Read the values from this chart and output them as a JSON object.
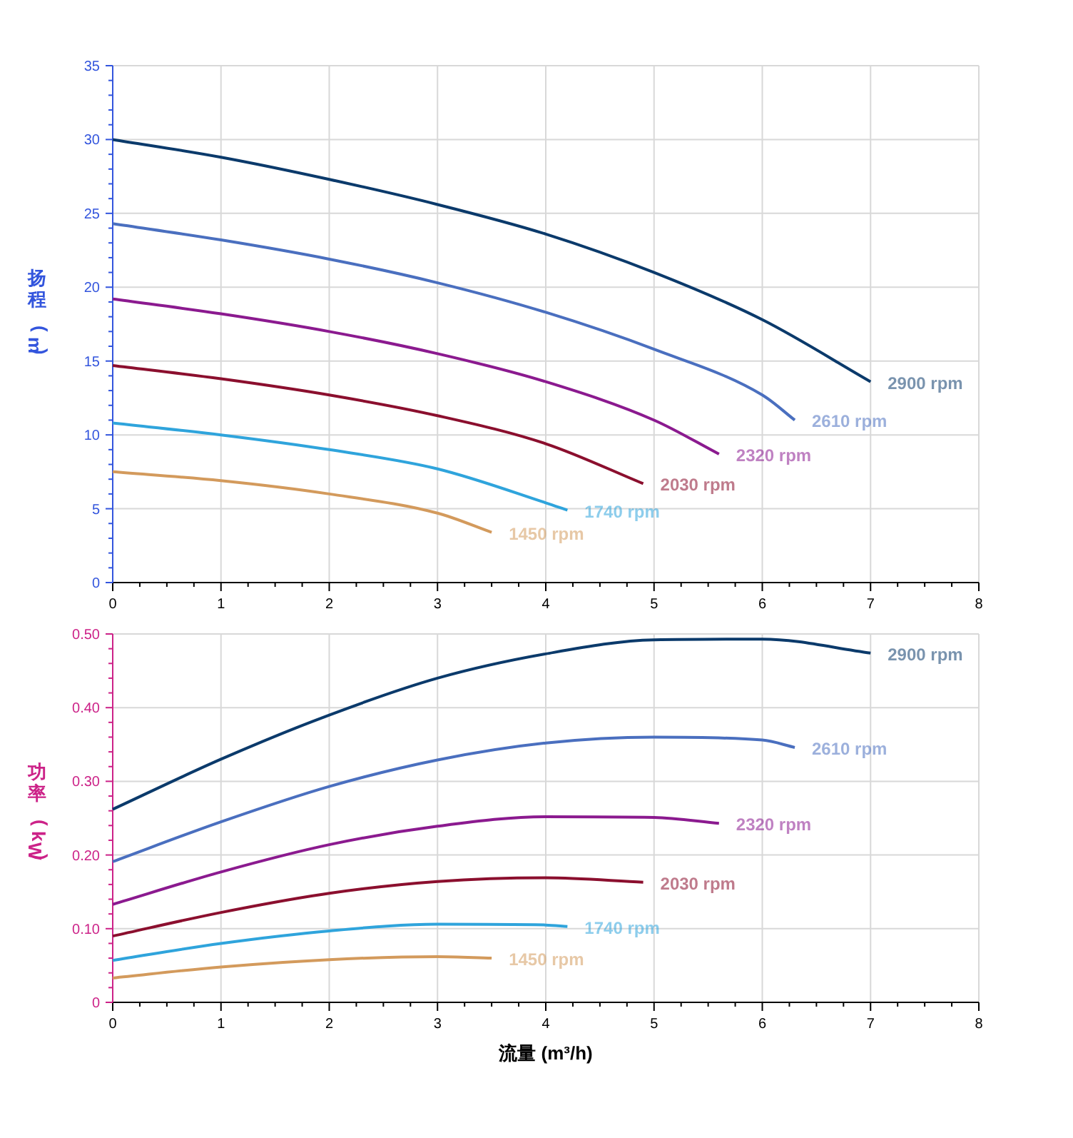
{
  "chart_data": [
    {
      "type": "line",
      "ylabel": "扬程 (m)",
      "xlim": [
        0,
        8
      ],
      "xticks": [
        0,
        1,
        2,
        3,
        4,
        5,
        6,
        7,
        8
      ],
      "ylim": [
        0,
        35
      ],
      "yticks": [
        0,
        5,
        10,
        15,
        20,
        25,
        30,
        35
      ],
      "grid": true,
      "legend": false,
      "marker": "none",
      "line_style": "solid",
      "series": [
        {
          "name": "2900 rpm",
          "color": "#0b3a6b",
          "x": [
            0,
            1,
            2,
            3,
            4,
            5,
            6,
            7
          ],
          "values": [
            30,
            28.8,
            27.3,
            25.6,
            23.6,
            21.0,
            17.8,
            13.6
          ]
        },
        {
          "name": "2610 rpm",
          "color": "#4a6fbf",
          "x": [
            0,
            1,
            2,
            3,
            4,
            5,
            6,
            6.3
          ],
          "values": [
            24.3,
            23.2,
            21.9,
            20.3,
            18.3,
            15.8,
            12.7,
            11.0
          ]
        },
        {
          "name": "2320 rpm",
          "color": "#8b1a8f",
          "x": [
            0,
            1,
            2,
            3,
            4,
            5,
            5.6
          ],
          "values": [
            19.2,
            18.2,
            17.0,
            15.5,
            13.6,
            11.0,
            8.7
          ]
        },
        {
          "name": "2030 rpm",
          "color": "#8b0f2e",
          "x": [
            0,
            1,
            2,
            3,
            4,
            4.9
          ],
          "values": [
            14.7,
            13.8,
            12.7,
            11.3,
            9.4,
            6.7
          ]
        },
        {
          "name": "1740 rpm",
          "color": "#2fa4dc",
          "x": [
            0,
            1,
            2,
            3,
            4,
            4.2
          ],
          "values": [
            10.8,
            10.0,
            9.0,
            7.7,
            5.4,
            4.9
          ]
        },
        {
          "name": "1450 rpm",
          "color": "#d39a5c",
          "x": [
            0,
            1,
            2,
            3,
            3.5
          ],
          "values": [
            7.5,
            6.9,
            6.0,
            4.7,
            3.4
          ]
        }
      ]
    },
    {
      "type": "line",
      "xlabel": "流量 (m³/h)",
      "ylabel": "功率 (kW)",
      "xlim": [
        0,
        8
      ],
      "xticks": [
        0,
        1,
        2,
        3,
        4,
        5,
        6,
        7,
        8
      ],
      "ylim": [
        0,
        0.5
      ],
      "yticks": [
        0,
        {
          "value": 0.1,
          "label": "0.10"
        },
        {
          "value": 0.2,
          "label": "0.20"
        },
        {
          "value": 0.3,
          "label": "0.30"
        },
        {
          "value": 0.4,
          "label": "0.40"
        },
        {
          "value": 0.5,
          "label": "0.50"
        }
      ],
      "grid": true,
      "legend": false,
      "marker": "none",
      "line_style": "solid",
      "series": [
        {
          "name": "2900 rpm",
          "color": "#0b3a6b",
          "x": [
            0,
            1,
            2,
            3,
            4,
            5,
            6,
            7
          ],
          "values": [
            0.262,
            0.33,
            0.39,
            0.44,
            0.473,
            0.492,
            0.493,
            0.474
          ]
        },
        {
          "name": "2610 rpm",
          "color": "#4a6fbf",
          "x": [
            0,
            1,
            2,
            3,
            4,
            5,
            6,
            6.3
          ],
          "values": [
            0.191,
            0.245,
            0.293,
            0.329,
            0.352,
            0.36,
            0.356,
            0.346
          ]
        },
        {
          "name": "2320 rpm",
          "color": "#8b1a8f",
          "x": [
            0,
            1,
            2,
            3,
            4,
            5,
            5.6
          ],
          "values": [
            0.133,
            0.177,
            0.214,
            0.239,
            0.252,
            0.251,
            0.243
          ]
        },
        {
          "name": "2030 rpm",
          "color": "#8b0f2e",
          "x": [
            0,
            1,
            2,
            3,
            4,
            4.9
          ],
          "values": [
            0.09,
            0.122,
            0.148,
            0.164,
            0.169,
            0.163
          ]
        },
        {
          "name": "1740 rpm",
          "color": "#2fa4dc",
          "x": [
            0,
            1,
            2,
            3,
            4,
            4.2
          ],
          "values": [
            0.057,
            0.08,
            0.097,
            0.106,
            0.105,
            0.103
          ]
        },
        {
          "name": "1450 rpm",
          "color": "#d39a5c",
          "x": [
            0,
            1,
            2,
            3,
            3.5
          ],
          "values": [
            0.033,
            0.048,
            0.058,
            0.062,
            0.06
          ]
        }
      ]
    }
  ]
}
